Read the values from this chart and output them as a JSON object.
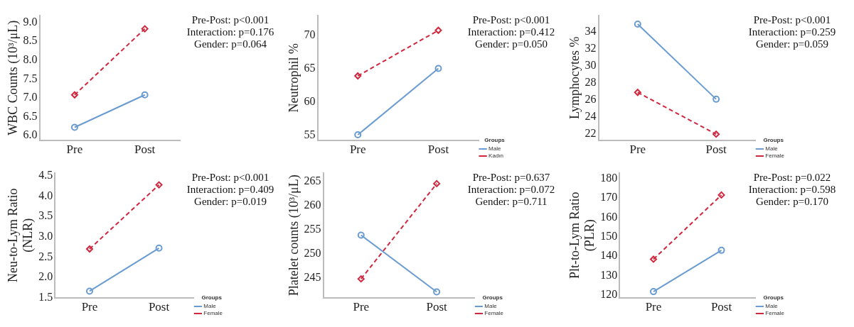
{
  "chart_data": [
    {
      "type": "line",
      "ylabel": "WBC Counts (10³/μL)",
      "categories": [
        "Pre",
        "Post"
      ],
      "ylim": [
        5.88,
        9.18
      ],
      "yticks": [
        {
          "value": 6,
          "label": "6.0"
        },
        {
          "value": 6.5,
          "label": "6.5"
        },
        {
          "value": 7,
          "label": "7.0"
        },
        {
          "value": 7.5,
          "label": "7.5"
        },
        {
          "value": 8,
          "label": "8.0"
        },
        {
          "value": 8.5,
          "label": "8.5"
        },
        {
          "value": 9,
          "label": "9.0"
        }
      ],
      "grid": false,
      "legend": false,
      "series": [
        {
          "color": "#6a9bd1",
          "values": [
            6.22,
            7.08
          ],
          "marker": "circle",
          "line_style": "solid"
        },
        {
          "color": "#d0273f",
          "values": [
            7.08,
            8.83
          ],
          "marker": "diamond",
          "line_style": "dashed"
        }
      ],
      "annotations": [
        "Pre-Post: p<0.001",
        "Interaction: p=0.176",
        "Gender: p=0.064"
      ]
    },
    {
      "type": "line",
      "ylabel": "Neutrophil %",
      "categories": [
        "Pre",
        "Post"
      ],
      "ylim": [
        54.3,
        72.9
      ],
      "yticks": [
        55,
        60,
        65,
        70
      ],
      "grid": false,
      "legend": "right",
      "legend_title": "Groups",
      "series": [
        {
          "name": "Male",
          "color": "#6a9bd1",
          "values": [
            55.1,
            65.0
          ],
          "marker": "circle",
          "line_style": "solid"
        },
        {
          "name": "Kadın",
          "color": "#d0273f",
          "values": [
            63.9,
            70.7
          ],
          "marker": "diamond",
          "line_style": "dashed"
        }
      ],
      "annotations": [
        "Pre-Post: p<0.001",
        "Interaction: p=0.412",
        "Gender: p=0.050"
      ]
    },
    {
      "type": "line",
      "ylabel": "Lymphocytes %",
      "categories": [
        "Pre",
        "Post"
      ],
      "ylim": [
        21.3,
        35.9
      ],
      "yticks": [
        22,
        24,
        26,
        28,
        30,
        32,
        34
      ],
      "grid": false,
      "legend": "right",
      "legend_title": "Groups",
      "series": [
        {
          "name": "Male",
          "color": "#6a9bd1",
          "values": [
            34.9,
            26.1
          ],
          "marker": "circle",
          "line_style": "solid"
        },
        {
          "name": "Female",
          "color": "#d0273f",
          "values": [
            26.9,
            22.0
          ],
          "marker": "diamond",
          "line_style": "dashed"
        }
      ],
      "annotations": [
        "Pre-Post: p<0.001",
        "Interaction: p=0.259",
        "Gender: p=0.059"
      ]
    },
    {
      "type": "line",
      "ylabel": "Neu-to-Lym Ratio\n(NLR)",
      "categories": [
        "Pre",
        "Post"
      ],
      "ylim": [
        1.5,
        4.57
      ],
      "yticks": [
        {
          "value": 1.5,
          "label": "1.5"
        },
        {
          "value": 2,
          "label": "2.0"
        },
        {
          "value": 2.5,
          "label": "2.5"
        },
        {
          "value": 3,
          "label": "3.0"
        },
        {
          "value": 3.5,
          "label": "3.5"
        },
        {
          "value": 4,
          "label": "4.0"
        },
        {
          "value": 4.5,
          "label": "4.5"
        }
      ],
      "grid": false,
      "legend": "right",
      "legend_title": "Groups",
      "series": [
        {
          "name": "Male",
          "color": "#6a9bd1",
          "values": [
            1.66,
            2.72
          ],
          "marker": "circle",
          "line_style": "solid"
        },
        {
          "name": "Female",
          "color": "#d0273f",
          "values": [
            2.7,
            4.28
          ],
          "marker": "diamond",
          "line_style": "dashed"
        }
      ],
      "annotations": [
        "Pre-Post: p<0.001",
        "Interaction: p=0.409",
        "Gender: p=0.019"
      ]
    },
    {
      "type": "line",
      "ylabel": "Platelet counts (10³/μL)",
      "categories": [
        "Pre",
        "Post"
      ],
      "ylim": [
        240.9,
        266.8
      ],
      "yticks": [
        245,
        250,
        255,
        260,
        265
      ],
      "grid": false,
      "legend": "right",
      "legend_title": "Groups",
      "series": [
        {
          "name": "Male",
          "color": "#6a9bd1",
          "values": [
            253.9,
            242.1
          ],
          "marker": "circle",
          "line_style": "solid"
        },
        {
          "name": "Female",
          "color": "#d0273f",
          "values": [
            244.8,
            264.6
          ],
          "marker": "diamond",
          "line_style": "dashed"
        }
      ],
      "annotations": [
        "Pre-Post: p=0.637",
        "Interaction: p=0.072",
        "Gender: p=0.711"
      ]
    },
    {
      "type": "line",
      "ylabel": "Plt-to-Lym Ratio\n(PLR)",
      "categories": [
        "Pre",
        "Post"
      ],
      "ylim": [
        118.6,
        182.8
      ],
      "yticks": [
        120,
        130,
        140,
        150,
        160,
        170,
        180
      ],
      "grid": false,
      "legend": "right",
      "legend_title": "Groups",
      "series": [
        {
          "name": "Male",
          "color": "#6a9bd1",
          "values": [
            121.7,
            143.0
          ],
          "marker": "circle",
          "line_style": "solid"
        },
        {
          "name": "Female",
          "color": "#d0273f",
          "values": [
            138.4,
            171.5
          ],
          "marker": "diamond",
          "line_style": "dashed"
        }
      ],
      "annotations": [
        "Pre-Post: p=0.022",
        "Interaction: p=0.598",
        "Gender: p=0.170"
      ]
    }
  ]
}
